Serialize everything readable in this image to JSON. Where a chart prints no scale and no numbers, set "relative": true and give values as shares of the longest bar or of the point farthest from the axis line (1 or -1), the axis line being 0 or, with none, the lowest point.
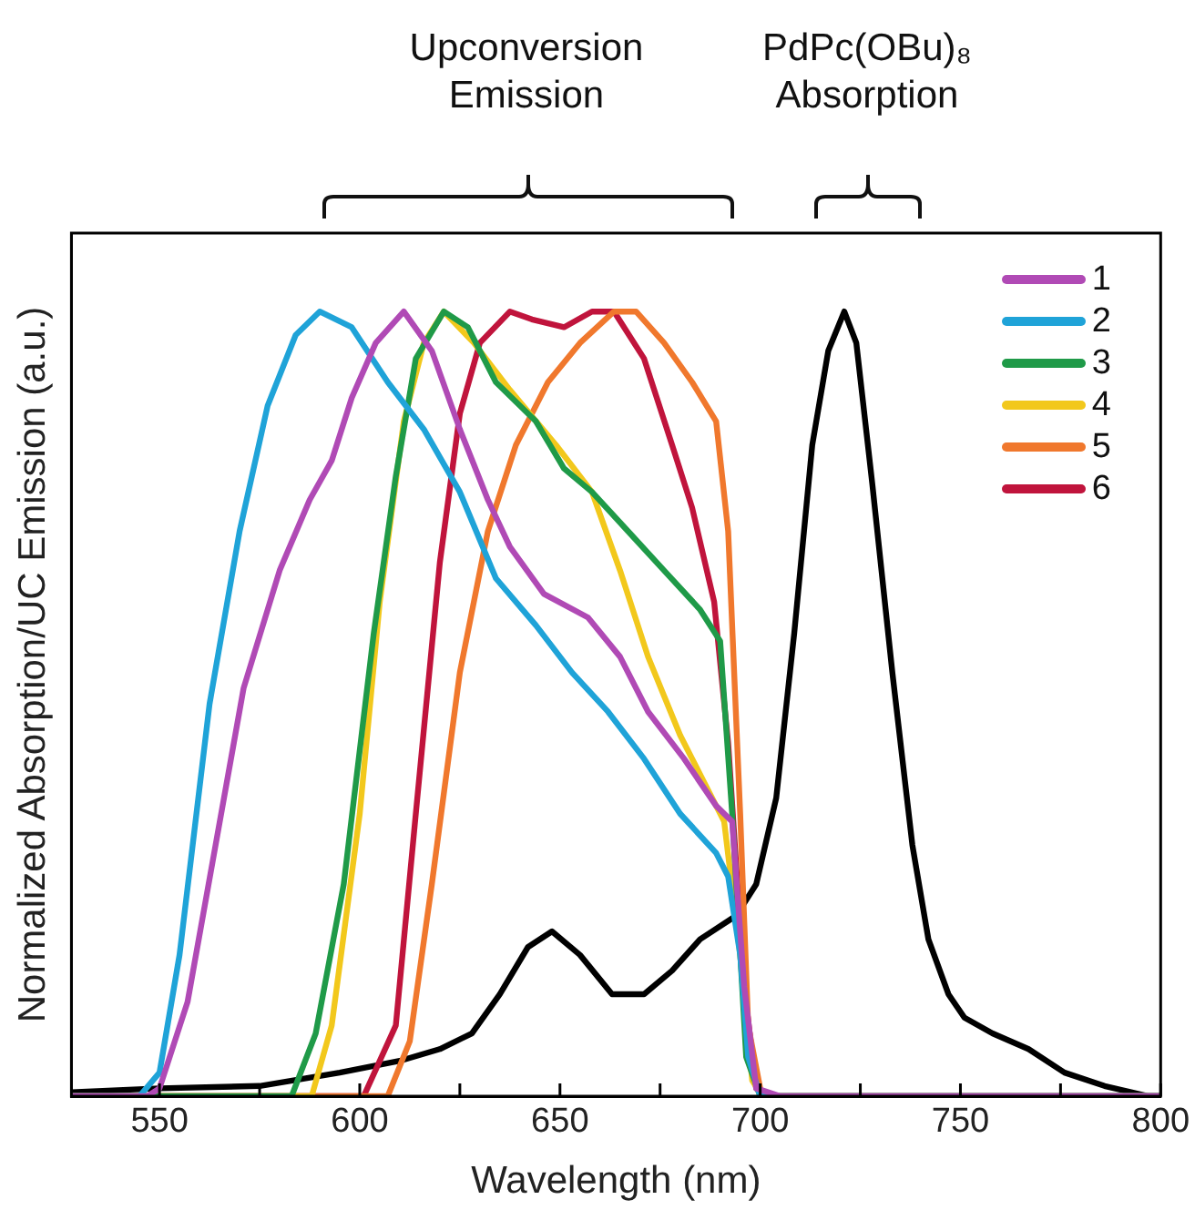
{
  "chart_data": {
    "type": "line",
    "xlabel": "Wavelength (nm)",
    "ylabel": "Normalized Absorption/UC Emission (a.u.)",
    "annotations": [
      "Upconversion Emission",
      "PdPc(OBu)₈ Absorption"
    ],
    "relative": true,
    "xlim": [
      528,
      800
    ],
    "xticks": [
      550,
      {
        "value": 575,
        "label": null
      },
      600,
      {
        "value": 625,
        "label": null
      },
      650,
      {
        "value": 675,
        "label": null
      },
      700,
      {
        "value": 725,
        "label": null
      },
      750,
      {
        "value": 775,
        "label": null
      },
      800
    ],
    "grid": false,
    "legend": "top right",
    "marker": "none",
    "line_style": "solid",
    "series": [
      {
        "name": "1",
        "color": "#b04ab5",
        "x": [
          528,
          547,
          550,
          557,
          564,
          571,
          580,
          587.5,
          593,
          598,
          604,
          611,
          618,
          625,
          632,
          637.5,
          646,
          657,
          665,
          672,
          681,
          689,
          693,
          696,
          699,
          705,
          800
        ],
        "values": [
          0,
          0,
          0.01,
          0.12,
          0.32,
          0.52,
          0.67,
          0.76,
          0.81,
          0.89,
          0.96,
          1.0,
          0.95,
          0.85,
          0.76,
          0.7,
          0.64,
          0.61,
          0.56,
          0.49,
          0.43,
          0.37,
          0.35,
          0.14,
          0.01,
          0,
          0
        ]
      },
      {
        "name": "2",
        "color": "#1fa3d8",
        "x": [
          528,
          545,
          550,
          555,
          562.5,
          570,
          577,
          584,
          590,
          598,
          607,
          616,
          625,
          634,
          644,
          653,
          662,
          671,
          680,
          689,
          692,
          695,
          697,
          700,
          705,
          800
        ],
        "values": [
          0,
          0,
          0.03,
          0.18,
          0.5,
          0.72,
          0.88,
          0.97,
          1.0,
          0.98,
          0.91,
          0.85,
          0.77,
          0.66,
          0.6,
          0.54,
          0.49,
          0.43,
          0.36,
          0.31,
          0.28,
          0.18,
          0.05,
          0,
          0,
          0
        ]
      },
      {
        "name": "3",
        "color": "#1f9a48",
        "x": [
          528,
          583,
          589,
          596,
          603.5,
          609,
          614,
          621,
          627,
          634,
          644,
          651,
          658,
          667,
          676,
          685,
          690,
          693,
          696.5,
          700,
          705,
          800
        ],
        "values": [
          0,
          0,
          0.08,
          0.27,
          0.59,
          0.79,
          0.94,
          1.0,
          0.98,
          0.91,
          0.86,
          0.8,
          0.77,
          0.72,
          0.67,
          0.62,
          0.58,
          0.36,
          0.05,
          0,
          0,
          0
        ]
      },
      {
        "name": "4",
        "color": "#f2c81c",
        "x": [
          528,
          588,
          593,
          600,
          605,
          611,
          616,
          621,
          628.5,
          637.5,
          649,
          658,
          665,
          672,
          680,
          687,
          691,
          695,
          698,
          700.5,
          705,
          800
        ],
        "values": [
          0,
          0,
          0.09,
          0.36,
          0.63,
          0.86,
          0.96,
          1.0,
          0.96,
          0.9,
          0.83,
          0.77,
          0.67,
          0.56,
          0.46,
          0.39,
          0.35,
          0.18,
          0.02,
          0,
          0,
          0
        ]
      },
      {
        "name": "5",
        "color": "#f0782d",
        "x": [
          528,
          607,
          612.5,
          618,
          625,
          632,
          639,
          647,
          655,
          663.5,
          669,
          676,
          683,
          689,
          692,
          695,
          697,
          700,
          701,
          705,
          800
        ],
        "values": [
          0,
          0,
          0.07,
          0.27,
          0.54,
          0.72,
          0.83,
          0.91,
          0.96,
          1.0,
          1.0,
          0.96,
          0.91,
          0.86,
          0.72,
          0.36,
          0.09,
          0.01,
          0,
          0,
          0
        ]
      },
      {
        "name": "6",
        "color": "#c0143c",
        "x": [
          528,
          601,
          609,
          614,
          620,
          625,
          630,
          637.5,
          643,
          651,
          658,
          663.5,
          671,
          678,
          683,
          688.5,
          692,
          696,
          699,
          701,
          705,
          800
        ],
        "values": [
          0,
          0,
          0.09,
          0.36,
          0.68,
          0.87,
          0.96,
          1.0,
          0.99,
          0.98,
          1.0,
          1.0,
          0.94,
          0.83,
          0.75,
          0.63,
          0.45,
          0.14,
          0.01,
          0,
          0,
          0
        ]
      },
      {
        "color": "#000000",
        "x": [
          528,
          550,
          575,
          595,
          610,
          620,
          628,
          635,
          642,
          648,
          655,
          663,
          671,
          678,
          685,
          694,
          699,
          704,
          708.5,
          713,
          717,
          721,
          724,
          728,
          733,
          738,
          742,
          747,
          751,
          758,
          767,
          776,
          786,
          797,
          800
        ],
        "values": [
          0.005,
          0.01,
          0.013,
          0.03,
          0.045,
          0.06,
          0.08,
          0.13,
          0.19,
          0.21,
          0.18,
          0.13,
          0.13,
          0.16,
          0.2,
          0.23,
          0.27,
          0.38,
          0.59,
          0.83,
          0.95,
          1.0,
          0.96,
          0.78,
          0.54,
          0.32,
          0.2,
          0.13,
          0.1,
          0.08,
          0.06,
          0.03,
          0.013,
          0,
          0
        ]
      }
    ]
  }
}
